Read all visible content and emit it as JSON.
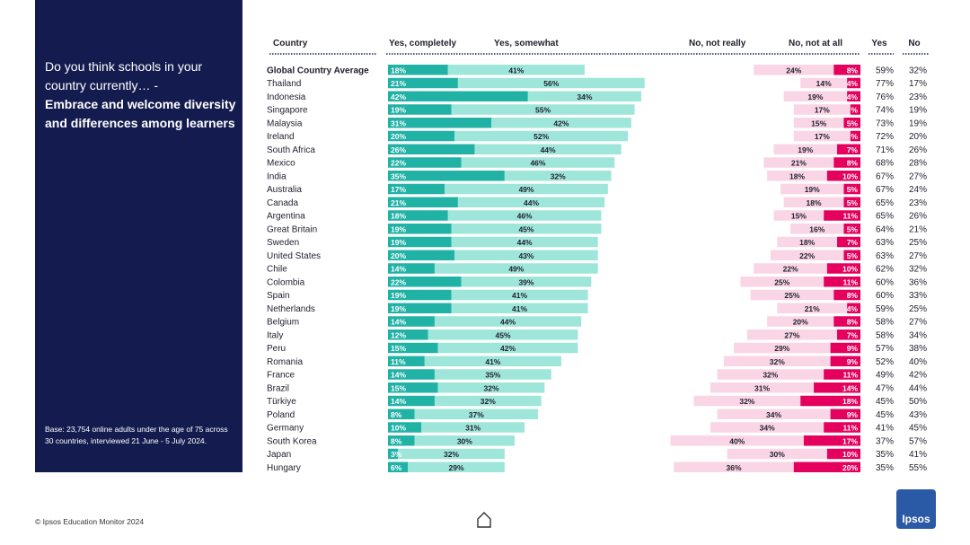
{
  "panel": {
    "question_intro": "Do you think schools in your country currently… -",
    "question_strong": "Embrace and welcome diversity and differences among learners",
    "base_note": "Base: 23,754 online adults under the age of 75 across 30 countries, interviewed 21 June - 5 July 2024."
  },
  "footer": {
    "source": "© Ipsos Education Monitor 2024",
    "logo_text": "Ipsos"
  },
  "colors": {
    "panel_bg": "#141c4f",
    "yes_completely": "#21b2a6",
    "yes_somewhat": "#9fe6da",
    "no_not_really": "#f9d5e5",
    "no_not_at_all": "#e5005e"
  },
  "chart_data": {
    "type": "bar",
    "orientation": "horizontal-diverging-stacked",
    "headers": {
      "country": "Country",
      "yes_completely": "Yes, completely",
      "yes_somewhat": "Yes, somewhat",
      "no_not_really": "No, not really",
      "no_not_at_all": "No, not at all",
      "yes": "Yes",
      "no": "No"
    },
    "categories": [
      "Global Country Average",
      "Thailand",
      "Indonesia",
      "Singapore",
      "Malaysia",
      "Ireland",
      "South Africa",
      "Mexico",
      "India",
      "Australia",
      "Canada",
      "Argentina",
      "Great Britain",
      "Sweden",
      "United States",
      "Chile",
      "Colombia",
      "Spain",
      "Netherlands",
      "Belgium",
      "Italy",
      "Peru",
      "Romania",
      "France",
      "Brazil",
      "Türkiye",
      "Poland",
      "Germany",
      "South Korea",
      "Japan",
      "Hungary"
    ],
    "series": [
      {
        "name": "Yes, completely",
        "values": [
          18,
          21,
          42,
          19,
          31,
          20,
          26,
          22,
          35,
          17,
          21,
          18,
          19,
          19,
          20,
          14,
          22,
          19,
          19,
          14,
          12,
          15,
          11,
          14,
          15,
          14,
          8,
          10,
          8,
          3,
          6
        ]
      },
      {
        "name": "Yes, somewhat",
        "values": [
          41,
          56,
          34,
          55,
          42,
          52,
          44,
          46,
          32,
          49,
          44,
          46,
          45,
          44,
          43,
          49,
          39,
          41,
          41,
          44,
          45,
          42,
          41,
          35,
          32,
          32,
          37,
          31,
          30,
          32,
          29
        ]
      },
      {
        "name": "No, not really",
        "values": [
          24,
          14,
          19,
          17,
          15,
          17,
          19,
          21,
          18,
          19,
          18,
          15,
          16,
          18,
          22,
          22,
          25,
          25,
          21,
          20,
          27,
          29,
          32,
          32,
          31,
          32,
          34,
          34,
          40,
          30,
          36
        ]
      },
      {
        "name": "No, not at all",
        "values": [
          8,
          4,
          4,
          3,
          5,
          3,
          7,
          8,
          10,
          5,
          5,
          11,
          5,
          7,
          5,
          10,
          11,
          8,
          4,
          8,
          7,
          9,
          9,
          11,
          14,
          18,
          9,
          11,
          17,
          10,
          20
        ]
      }
    ],
    "value_labels": {
      "yes_completely": [
        "18%",
        "21%",
        "42%",
        "19%",
        "31%",
        "20%",
        "26%",
        "22%",
        "35%",
        "17%",
        "21%",
        "18%",
        "19%",
        "19%",
        "20%",
        "14%",
        "22%",
        "19%",
        "19%",
        "14%",
        "12%",
        "15%",
        "11%",
        "14%",
        "15%",
        "14%",
        "8%",
        "10%",
        "8%",
        "3%",
        "6%"
      ],
      "yes_somewhat": [
        "41%",
        "56%",
        "34%",
        "55%",
        "42%",
        "52%",
        "44%",
        "46%",
        "32%",
        "49%",
        "44%",
        "46%",
        "45%",
        "44%",
        "43%",
        "49%",
        "39%",
        "41%",
        "41%",
        "44%",
        "45%",
        "42%",
        "41%",
        "35%",
        "32%",
        "32%",
        "37%",
        "31%",
        "30%",
        "32%",
        "29%"
      ],
      "no_not_really": [
        "24%",
        "14%",
        "19%",
        "17%",
        "15%",
        "17%",
        "19%",
        "21%",
        "18%",
        "19%",
        "18%",
        "15%",
        "16%",
        "18%",
        "22%",
        "22%",
        "25%",
        "25%",
        "21%",
        "20%",
        "27%",
        "29%",
        "32%",
        "32%",
        "31%",
        "32%",
        "34%",
        "34%",
        "40%",
        "30%",
        "36%"
      ],
      "no_not_at_all": [
        "8%",
        "4%",
        "4%",
        "%",
        "5%",
        "%",
        "7%",
        "8%",
        "10%",
        "5%",
        "5%",
        "11%",
        "5%",
        "7%",
        "5%",
        "10%",
        "11%",
        "8%",
        "4%",
        "8%",
        "7%",
        "9%",
        "9%",
        "11%",
        "14%",
        "18%",
        "9%",
        "11%",
        "17%",
        "10%",
        "20%"
      ]
    },
    "totals": {
      "yes": [
        "59%",
        "77%",
        "76%",
        "74%",
        "73%",
        "72%",
        "71%",
        "68%",
        "67%",
        "67%",
        "65%",
        "65%",
        "64%",
        "63%",
        "63%",
        "62%",
        "60%",
        "60%",
        "59%",
        "58%",
        "58%",
        "57%",
        "52%",
        "49%",
        "47%",
        "45%",
        "45%",
        "41%",
        "37%",
        "35%",
        "35%"
      ],
      "no": [
        "32%",
        "17%",
        "23%",
        "19%",
        "19%",
        "20%",
        "26%",
        "28%",
        "27%",
        "24%",
        "23%",
        "26%",
        "21%",
        "25%",
        "27%",
        "32%",
        "36%",
        "33%",
        "25%",
        "27%",
        "34%",
        "38%",
        "40%",
        "42%",
        "44%",
        "50%",
        "43%",
        "45%",
        "57%",
        "41%",
        "55%"
      ]
    }
  }
}
